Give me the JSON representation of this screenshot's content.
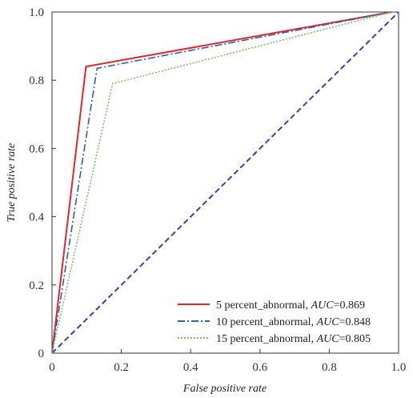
{
  "chart_data": {
    "type": "line",
    "xlabel": "False positive rate",
    "ylabel": "True positive rate",
    "xlim": [
      0,
      1
    ],
    "ylim": [
      0,
      1
    ],
    "x_ticks": [
      0,
      0.2,
      0.4,
      0.6,
      0.8,
      1.0
    ],
    "x_tick_labels": [
      "0",
      "0.2",
      "0.4",
      "0.6",
      "0.8",
      "1.0"
    ],
    "y_ticks": [
      0,
      0.2,
      0.4,
      0.6,
      0.8,
      1.0
    ],
    "y_tick_labels": [
      "0",
      "0.2",
      "0.4",
      "0.6",
      "0.8",
      "1.0"
    ],
    "grid": false,
    "legend_position": "bottom-right",
    "series": [
      {
        "legend_label": "5 percent_abnormal, AUC=0.869",
        "legend_prefix": "5 percent_abnormal, ",
        "legend_metric": "AUC",
        "legend_value": "=0.869",
        "color": "#e8232a",
        "dash": "solid",
        "points": [
          [
            0,
            0
          ],
          [
            0.098,
            0.84
          ],
          [
            0.98,
            1.0
          ]
        ]
      },
      {
        "legend_label": "10 percent_abnormal, AUC=0.848",
        "legend_prefix": "10 percent_abnormal, ",
        "legend_metric": "AUC",
        "legend_value": "=0.848",
        "color": "#2f5fa8",
        "dash": "dashdot",
        "points": [
          [
            0,
            0
          ],
          [
            0.13,
            0.835
          ],
          [
            0.98,
            1.0
          ]
        ]
      },
      {
        "legend_label": "15 percent_abnormal, AUC=0.805",
        "legend_prefix": "15 percent_abnormal, ",
        "legend_metric": "AUC",
        "legend_value": "=0.805",
        "color": "#7bbf6a",
        "dash": "dotted",
        "points": [
          [
            0,
            0
          ],
          [
            0.175,
            0.79
          ],
          [
            0.98,
            1.0
          ]
        ]
      }
    ],
    "reference_line": {
      "color": "#3a3fb5",
      "dash": "dashed",
      "points": [
        [
          0,
          0
        ],
        [
          1,
          1
        ]
      ]
    }
  }
}
